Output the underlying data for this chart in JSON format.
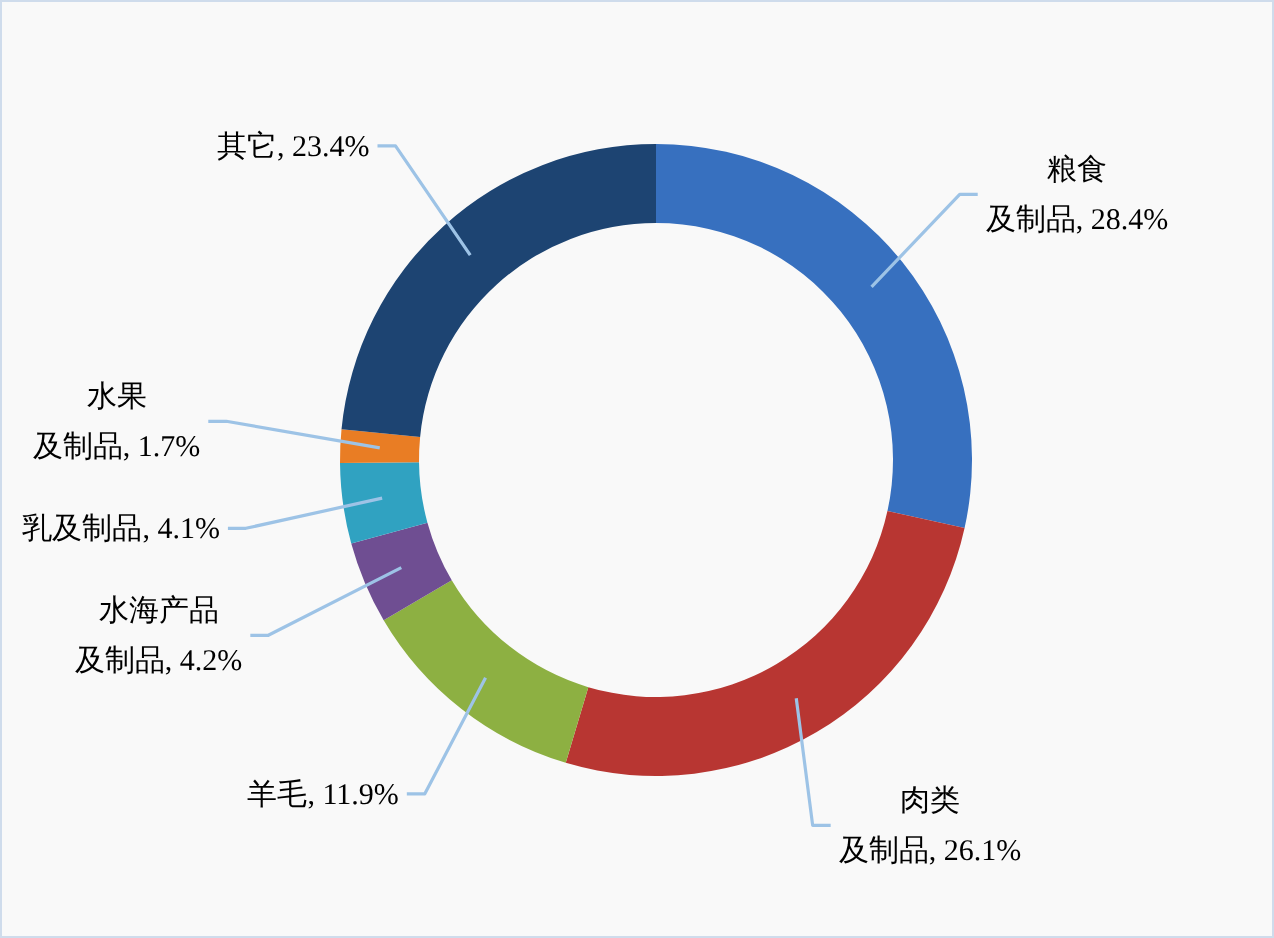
{
  "chart_data": {
    "type": "donut",
    "categories": [
      "粮食及制品",
      "肉类及制品",
      "羊毛",
      "水海产品及制品",
      "乳及制品",
      "水果及制品",
      "其它"
    ],
    "values": [
      28.4,
      26.1,
      11.9,
      4.2,
      4.1,
      1.7,
      23.4
    ],
    "value_labels": [
      "28.4%",
      "26.1%",
      "11.9%",
      "4.2%",
      "4.1%",
      "1.7%",
      "23.4%"
    ],
    "colors": [
      "#3770bf",
      "#b83632",
      "#8db042",
      "#6f4e92",
      "#30a2c1",
      "#e97d24",
      "#1d4472"
    ]
  }
}
